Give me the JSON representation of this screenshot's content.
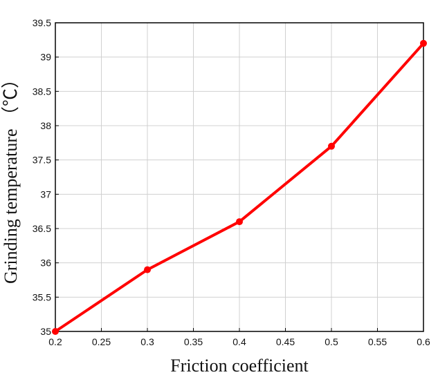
{
  "chart_data": {
    "type": "line",
    "title": "",
    "xlabel": "Friction coefficient",
    "ylabel": "Grinding temperature （℃）",
    "xlim": [
      0.2,
      0.6
    ],
    "ylim": [
      35,
      39.5
    ],
    "xticks": [
      "0.2",
      "0.25",
      "0.3",
      "0.35",
      "0.4",
      "0.45",
      "0.5",
      "0.55",
      "0.6"
    ],
    "yticks": [
      "35",
      "35.5",
      "36",
      "36.5",
      "37",
      "37.5",
      "38",
      "38.5",
      "39",
      "39.5"
    ],
    "grid": true,
    "series": [
      {
        "x": [
          0.2,
          0.3,
          0.4,
          0.5,
          0.6
        ],
        "values": [
          35.0,
          35.9,
          36.6,
          37.7,
          39.2
        ],
        "color": "#ff0000",
        "marker": "circle"
      }
    ]
  }
}
